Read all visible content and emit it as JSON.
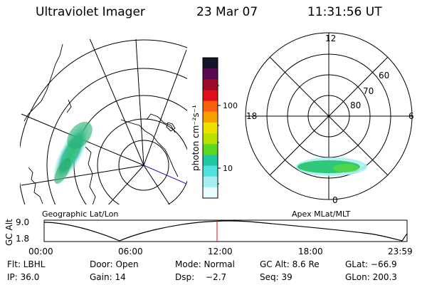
{
  "header": {
    "instrument": "Ultraviolet Imager",
    "date": "23 Mar 07",
    "time": "11:31:56 UT"
  },
  "colorbar": {
    "unit_label": "photon cm⁻²s⁻¹",
    "ticks": [
      "100",
      "10"
    ],
    "colors": [
      "#141428",
      "#5a0a50",
      "#9c0a2a",
      "#e0101a",
      "#f86010",
      "#f8a000",
      "#f0e000",
      "#b8e000",
      "#58d820",
      "#20c8a0",
      "#50e0e0",
      "#a8f0f0",
      "#e8ffff"
    ]
  },
  "geo_map": {
    "label": "Geographic Lat/Lon"
  },
  "polar_plot": {
    "label": "Apex MLat/MLT",
    "mlt_labels": {
      "top": "12",
      "left": "18",
      "right": "6",
      "bottom": "0"
    },
    "lat_labels": [
      "60",
      "70",
      "80"
    ]
  },
  "altitude_strip": {
    "ylabel": "GC Alt",
    "y_ticks": [
      "9.0",
      "1.8"
    ],
    "x_ticks": [
      "00:00",
      "06:00",
      "12:00",
      "18:00",
      "23:59"
    ],
    "marker_color": "#d01010"
  },
  "info": {
    "filter": "Flt: LBHL",
    "door": "Door: Open",
    "mode": "Mode: Normal",
    "gc_alt": "GC Alt: 8.6 Re",
    "glat": "GLat: −66.9",
    "ip": "IP: 36.0",
    "gain": "Gain: 14",
    "dsp_label": "Dsp:",
    "dsp_value": "−2.7",
    "seq": "Seq: 39",
    "glon": "GLon: 200.3"
  }
}
